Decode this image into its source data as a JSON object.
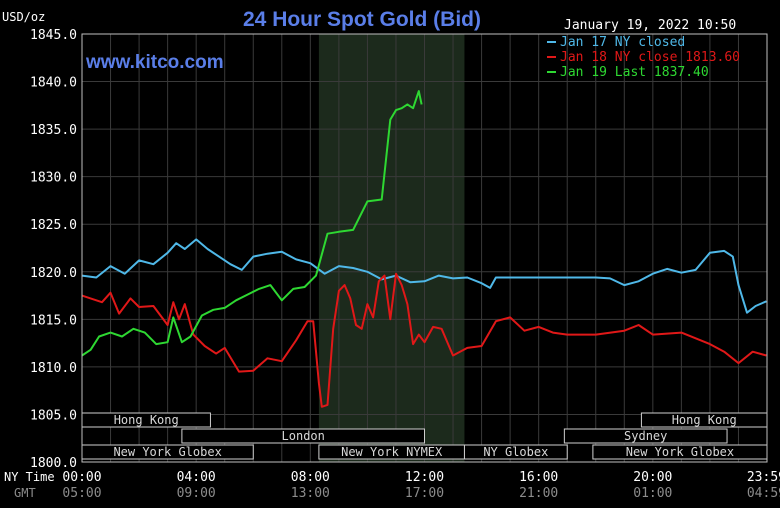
{
  "chart_data": {
    "type": "line",
    "title": "24 Hour Spot Gold (Bid)",
    "watermark": "www.kitco.com",
    "datetime": "January 19, 2022 10:50",
    "ylabel": "USD/oz",
    "ylim": [
      1800.0,
      1845.0
    ],
    "yticks": [
      "1800.0",
      "1805.0",
      "1810.0",
      "1815.0",
      "1820.0",
      "1825.0",
      "1830.0",
      "1835.0",
      "1840.0",
      "1845.0"
    ],
    "xlim": [
      0,
      24
    ],
    "x_row_labels": [
      "NY Time",
      "GMT"
    ],
    "xticks_ny": [
      "00:00",
      "04:00",
      "08:00",
      "12:00",
      "16:00",
      "20:00",
      "23:59"
    ],
    "xticks_gmt": [
      "05:00",
      "09:00",
      "13:00",
      "17:00",
      "21:00",
      "01:00",
      "04:59"
    ],
    "xtick_hours": [
      0,
      4,
      8,
      12,
      16,
      20,
      23.98
    ],
    "shaded_session": [
      8.3,
      13.4
    ],
    "grid": true,
    "legend_position": "top-right",
    "sessions": [
      {
        "label": "Hong Kong",
        "start": 0,
        "end": 4.5,
        "row": 0
      },
      {
        "label": "Hong Kong",
        "start": 19.6,
        "end": 24,
        "row": 0
      },
      {
        "label": "London",
        "start": 3.5,
        "end": 12.0,
        "row": 1
      },
      {
        "label": "Sydney",
        "start": 16.9,
        "end": 22.6,
        "row": 1
      },
      {
        "label": "New York Globex",
        "start": 0,
        "end": 6.0,
        "row": 2
      },
      {
        "label": "New York NYMEX",
        "start": 8.3,
        "end": 13.4,
        "row": 2
      },
      {
        "label": "NY Globex",
        "start": 13.4,
        "end": 17.0,
        "row": 2
      },
      {
        "label": "New York Globex",
        "start": 17.9,
        "end": 24,
        "row": 2
      }
    ],
    "series": [
      {
        "name": "Jan 17 NY closed",
        "color": "#4fb8e8",
        "x": [
          0,
          0.5,
          1,
          1.5,
          2,
          2.5,
          3,
          3.3,
          3.6,
          4,
          4.4,
          4.8,
          5.2,
          5.6,
          6,
          6.5,
          7,
          7.5,
          8,
          8.5,
          9,
          9.5,
          10,
          10.5,
          11,
          11.5,
          12,
          12.5,
          13,
          13.5,
          14,
          14.3,
          14.5,
          15,
          16,
          17,
          18,
          18.5,
          19,
          19.5,
          20,
          20.5,
          21,
          21.5,
          22,
          22.5,
          22.8,
          23,
          23.3,
          23.6,
          23.98
        ],
        "y": [
          1819.6,
          1819.4,
          1820.6,
          1819.8,
          1821.2,
          1820.8,
          1822.0,
          1823.0,
          1822.4,
          1823.4,
          1822.4,
          1821.6,
          1820.8,
          1820.2,
          1821.6,
          1821.9,
          1822.1,
          1821.3,
          1820.9,
          1819.8,
          1820.6,
          1820.4,
          1820.0,
          1819.2,
          1819.6,
          1818.9,
          1819.0,
          1819.6,
          1819.3,
          1819.4,
          1818.8,
          1818.3,
          1819.4,
          1819.4,
          1819.4,
          1819.4,
          1819.4,
          1819.3,
          1818.6,
          1819.0,
          1819.8,
          1820.3,
          1819.9,
          1820.2,
          1822.0,
          1822.2,
          1821.6,
          1818.6,
          1815.7,
          1816.4,
          1816.9
        ]
      },
      {
        "name": "Jan 18 NY close 1813.60",
        "color": "#e01818",
        "x": [
          0,
          0.3,
          0.7,
          1,
          1.3,
          1.7,
          2,
          2.5,
          3,
          3.2,
          3.4,
          3.6,
          3.9,
          4.3,
          4.7,
          5,
          5.5,
          6,
          6.5,
          7,
          7.5,
          7.9,
          8.1,
          8.3,
          8.4,
          8.6,
          8.8,
          9.0,
          9.2,
          9.4,
          9.6,
          9.8,
          10,
          10.2,
          10.4,
          10.6,
          10.8,
          11.0,
          11.2,
          11.4,
          11.6,
          11.8,
          12.0,
          12.3,
          12.6,
          13,
          13.5,
          14,
          14.5,
          15,
          15.5,
          16,
          16.5,
          17,
          18,
          19,
          19.5,
          20,
          21,
          22,
          22.5,
          23,
          23.5,
          23.98
        ],
        "y": [
          1817.5,
          1817.2,
          1816.8,
          1817.8,
          1815.6,
          1817.2,
          1816.3,
          1816.4,
          1814.4,
          1816.8,
          1815.0,
          1816.6,
          1813.4,
          1812.2,
          1811.4,
          1812.0,
          1809.5,
          1809.6,
          1810.9,
          1810.6,
          1812.8,
          1814.8,
          1814.8,
          1808.3,
          1805.8,
          1806.0,
          1814.0,
          1818.0,
          1818.6,
          1817.2,
          1814.4,
          1814.0,
          1816.6,
          1815.2,
          1819.0,
          1819.6,
          1815.0,
          1819.8,
          1818.6,
          1816.6,
          1812.4,
          1813.4,
          1812.6,
          1814.2,
          1814.0,
          1811.2,
          1812.0,
          1812.2,
          1814.8,
          1815.2,
          1813.8,
          1814.2,
          1813.6,
          1813.4,
          1813.4,
          1813.8,
          1814.4,
          1813.4,
          1813.6,
          1812.4,
          1811.6,
          1810.4,
          1811.6,
          1811.2
        ]
      },
      {
        "name": "Jan 19 Last 1837.40",
        "color": "#2ed832",
        "x": [
          0,
          0.3,
          0.6,
          1,
          1.4,
          1.8,
          2.2,
          2.6,
          3.0,
          3.2,
          3.5,
          3.8,
          4.2,
          4.6,
          5.0,
          5.4,
          5.8,
          6.2,
          6.6,
          7.0,
          7.4,
          7.8,
          8.2,
          8.6,
          9.0,
          9.5,
          10.0,
          10.5,
          10.8,
          11.0,
          11.2,
          11.4,
          11.6,
          11.8,
          11.9
        ],
        "y": [
          1811.2,
          1811.8,
          1813.2,
          1813.6,
          1813.2,
          1814.0,
          1813.6,
          1812.4,
          1812.6,
          1815.2,
          1812.6,
          1813.2,
          1815.4,
          1816.0,
          1816.2,
          1817.0,
          1817.6,
          1818.2,
          1818.6,
          1817.0,
          1818.2,
          1818.4,
          1819.6,
          1824.0,
          1824.2,
          1824.4,
          1827.4,
          1827.6,
          1836.0,
          1837.0,
          1837.2,
          1837.6,
          1837.2,
          1839.0,
          1837.6
        ]
      }
    ]
  }
}
